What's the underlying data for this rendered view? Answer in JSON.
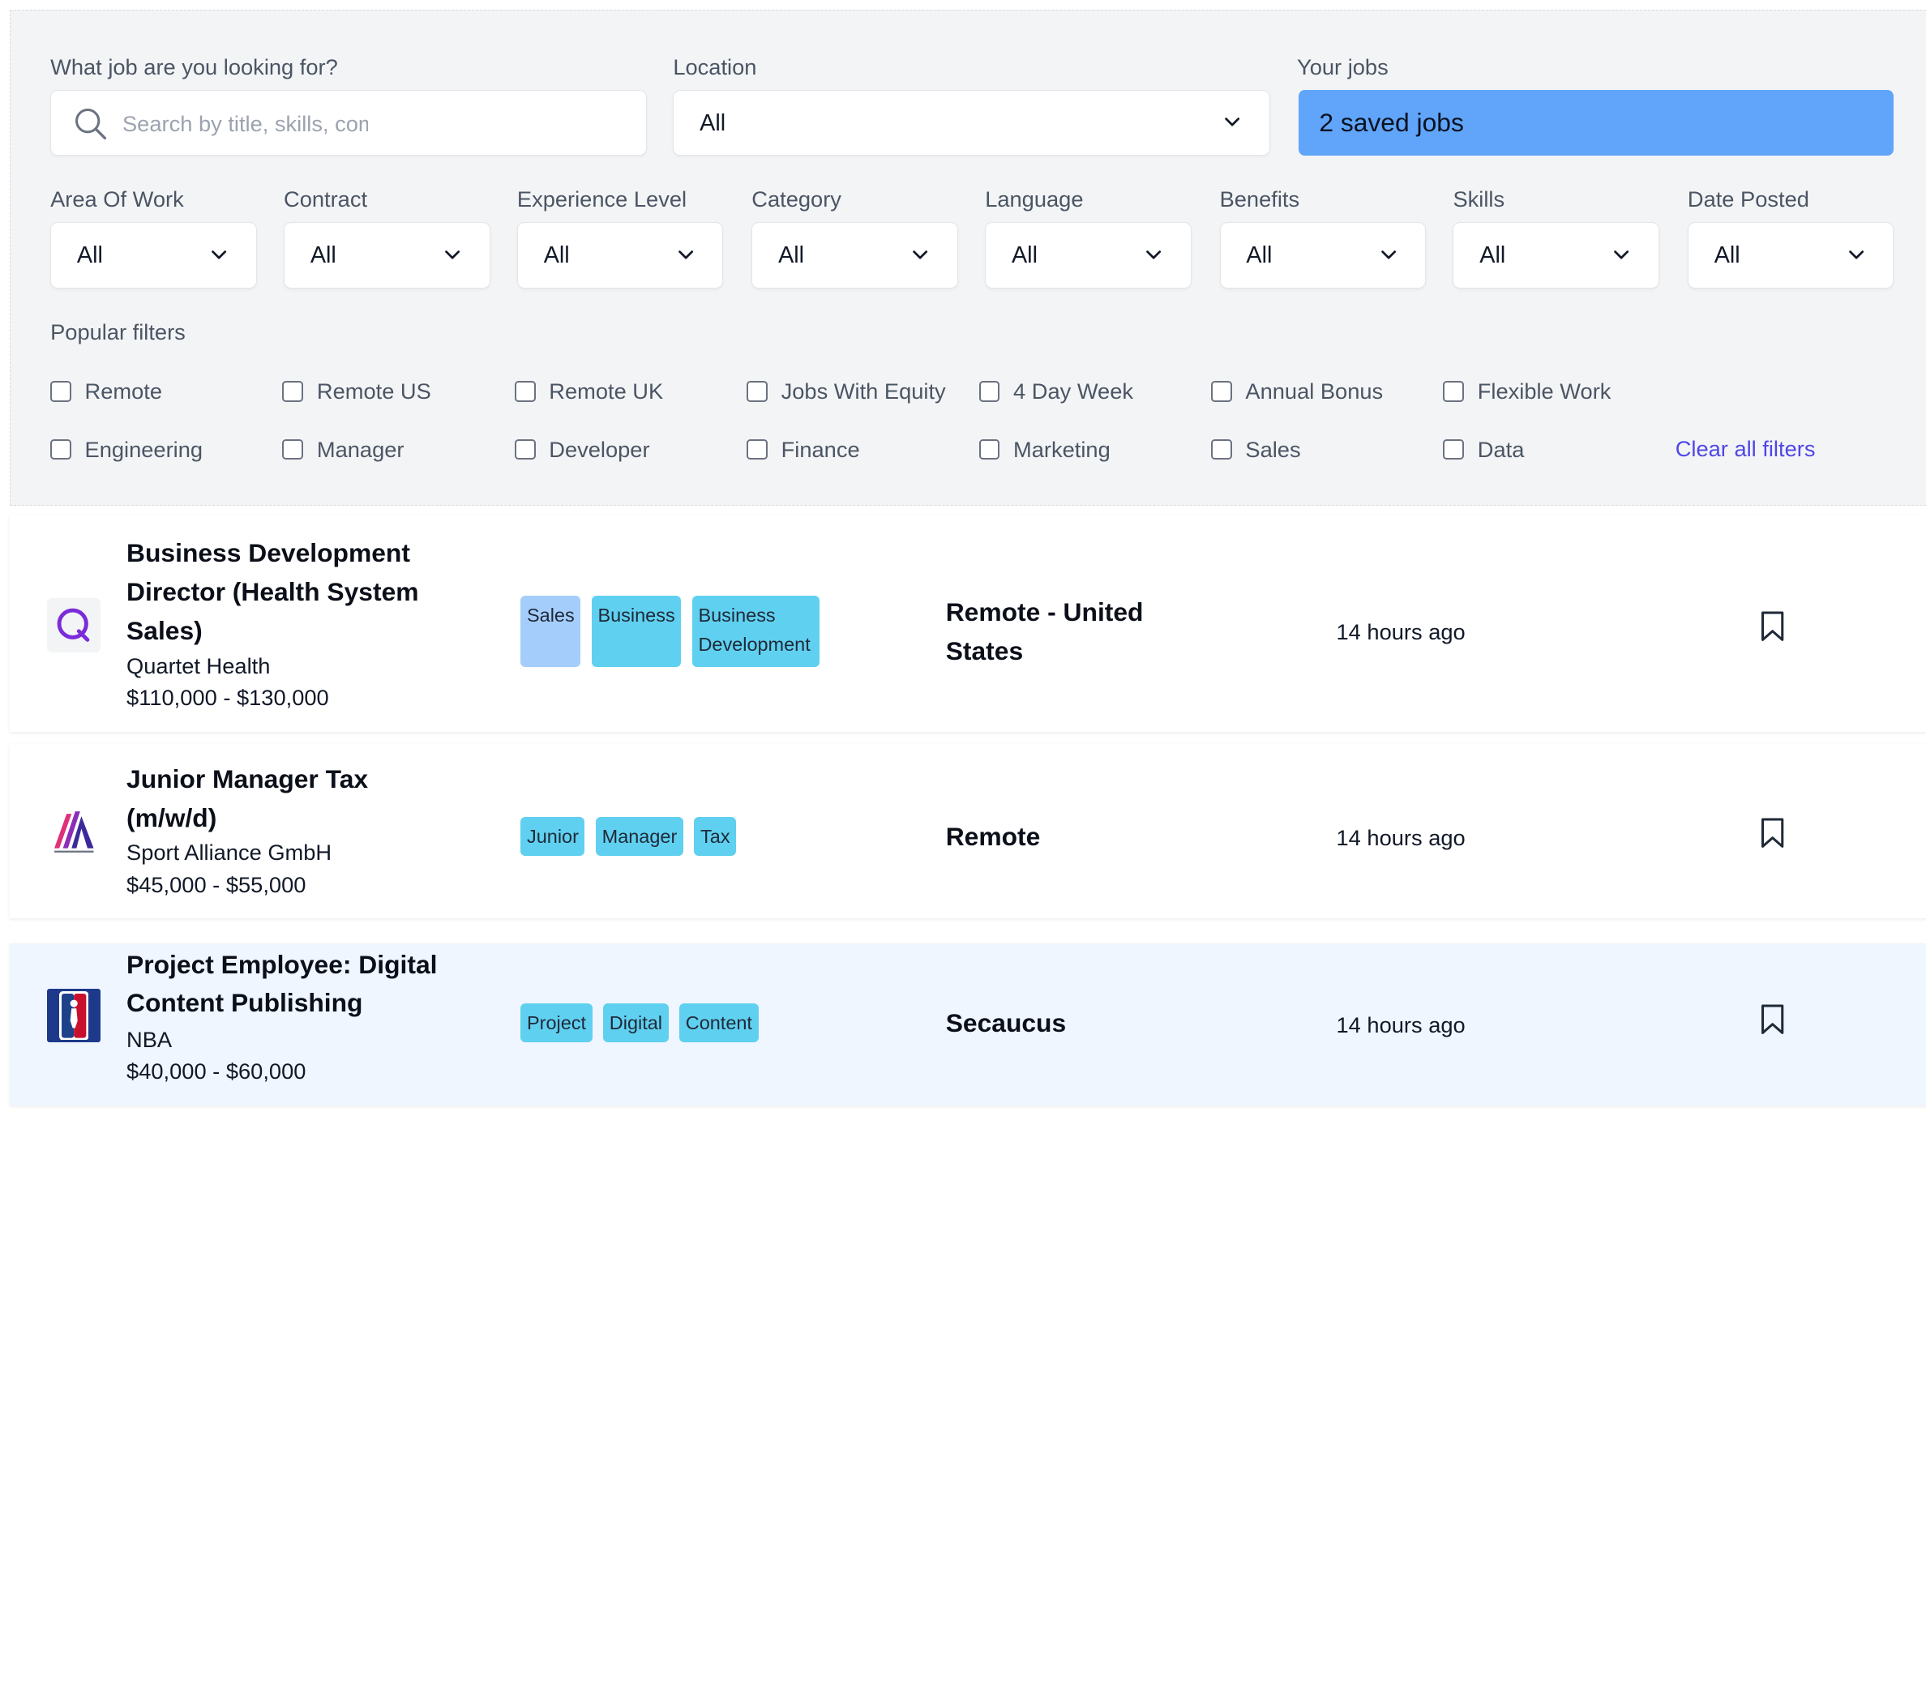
{
  "search": {
    "label": "What job are you looking for?",
    "placeholder": "Search by title, skills, company",
    "value": ""
  },
  "location": {
    "label": "Location",
    "value": "All"
  },
  "your_jobs": {
    "label": "Your jobs",
    "button": "2 saved jobs"
  },
  "filters": [
    {
      "label": "Area Of Work",
      "value": "All"
    },
    {
      "label": "Contract",
      "value": "All"
    },
    {
      "label": "Experience Level",
      "value": "All"
    },
    {
      "label": "Category",
      "value": "All"
    },
    {
      "label": "Language",
      "value": "All"
    },
    {
      "label": "Benefits",
      "value": "All"
    },
    {
      "label": "Skills",
      "value": "All"
    },
    {
      "label": "Date Posted",
      "value": "All"
    }
  ],
  "popular": {
    "label": "Popular filters",
    "row1": [
      "Remote",
      "Remote US",
      "Remote UK",
      "Jobs With Equity",
      "4 Day Week",
      "Annual Bonus",
      "Flexible Work"
    ],
    "row2": [
      "Engineering",
      "Manager",
      "Developer",
      "Finance",
      "Marketing",
      "Sales",
      "Data"
    ],
    "clear_label": "Clear all filters"
  },
  "jobs": [
    {
      "title_lines": [
        "Business Development",
        "Director (Health System",
        "Sales)"
      ],
      "company": "Quartet Health",
      "salary": "$110,000 - $130,000",
      "tags": [
        "Sales",
        "Business",
        "Business Development"
      ],
      "location_lines": [
        "Remote - United",
        "States"
      ],
      "posted": "14 hours ago",
      "logo_icon": "quartet-health-logo"
    },
    {
      "title_lines": [
        "Junior Manager Tax",
        "(m/w/d)"
      ],
      "company": "Sport Alliance GmbH",
      "salary": "$45,000 - $55,000",
      "tags": [
        "Junior",
        "Manager",
        "Tax"
      ],
      "location_lines": [
        "Remote"
      ],
      "posted": "14 hours ago",
      "logo_icon": "sport-alliance-logo"
    },
    {
      "title_lines": [
        "Project Employee: Digital",
        "Content Publishing"
      ],
      "company": "NBA",
      "salary": "$40,000 - $60,000",
      "tags": [
        "Project",
        "Digital",
        "Content"
      ],
      "location_lines": [
        "Secaucus"
      ],
      "posted": "14 hours ago",
      "logo_icon": "nba-logo"
    }
  ],
  "colors": {
    "accent": "#60a5fa",
    "tag": "#5fd0f0",
    "tag_alt": "#a5cdfc",
    "link": "#4f46e5",
    "highlight_row": "#eff6ff"
  }
}
